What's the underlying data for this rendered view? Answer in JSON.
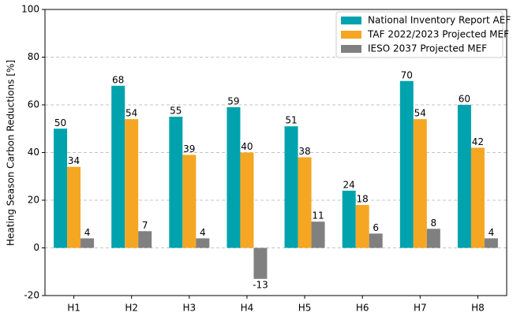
{
  "chart_data": {
    "type": "bar",
    "y_label": "Heating Season Carbon Reductions [%]",
    "categories": [
      "H1",
      "H2",
      "H3",
      "H4",
      "H5",
      "H6",
      "H7",
      "H8"
    ],
    "series": [
      {
        "name": "National Inventory Report AEF",
        "color": "#00a3ad",
        "values": [
          50,
          68,
          55,
          59,
          51,
          24,
          70,
          60
        ]
      },
      {
        "name": "TAF 2022/2023 Projected MEF",
        "color": "#f5a623",
        "values": [
          34,
          54,
          39,
          40,
          38,
          18,
          54,
          42
        ]
      },
      {
        "name": "IESO 2037 Projected MEF",
        "color": "#808080",
        "values": [
          4,
          7,
          4,
          -13,
          11,
          6,
          8,
          4
        ]
      }
    ],
    "ylim": [
      -20,
      100
    ],
    "yticks": [
      -20,
      0,
      20,
      40,
      60,
      80,
      100
    ],
    "grid": true,
    "legend": "upper right"
  }
}
